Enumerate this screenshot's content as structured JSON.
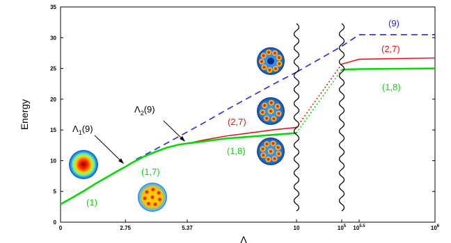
{
  "chart_data": {
    "type": "line",
    "xlabel": "Λ",
    "ylabel": "Energy",
    "ylim": [
      0,
      35
    ],
    "x_ticks": [
      {
        "label": "0",
        "value": 0
      },
      {
        "label": "2.75",
        "value": 2.75
      },
      {
        "label": "5.37",
        "value": 5.37
      },
      {
        "label": "10",
        "value": 10
      },
      {
        "label": "10",
        "sup": "5",
        "value": 100000
      },
      {
        "label": "10",
        "sup": "5.5",
        "value": 316228
      },
      {
        "label": "10",
        "sup": "6",
        "value": 1000000
      }
    ],
    "y_ticks": [
      0,
      5,
      10,
      15,
      20,
      25,
      30,
      35
    ],
    "series": [
      {
        "name": "(1)",
        "color": "#00dd00",
        "style": "solid",
        "points": [
          [
            0,
            2.9
          ],
          [
            0.5,
            4.0
          ],
          [
            1,
            5.1
          ],
          [
            1.5,
            6.3
          ],
          [
            2,
            7.4
          ],
          [
            2.5,
            8.5
          ],
          [
            2.75,
            9.0
          ],
          [
            3,
            9.6
          ],
          [
            3.5,
            10.6
          ],
          [
            4,
            11.4
          ],
          [
            4.5,
            12.1
          ],
          [
            5,
            12.6
          ],
          [
            5.37,
            12.8
          ]
        ]
      },
      {
        "name": "(1,7)",
        "color": "#00dd00",
        "style": "solid",
        "points": []
      },
      {
        "name": "(9)",
        "color": "#2222ff",
        "style": "dashed",
        "points": [
          [
            3.2,
            10.2
          ],
          [
            4,
            11.8
          ],
          [
            5,
            13.9
          ],
          [
            6,
            16.0
          ],
          [
            7,
            18.2
          ],
          [
            8,
            20.3
          ],
          [
            9,
            22.4
          ],
          [
            10,
            24.4
          ],
          [
            100000,
            28.6
          ],
          [
            316228,
            30.5
          ],
          [
            1000000,
            30.5
          ]
        ]
      },
      {
        "name": "(2,7)",
        "color": "#ee1111",
        "style": "solid",
        "points": [
          [
            5.37,
            12.8
          ],
          [
            6,
            13.3
          ],
          [
            7,
            14.0
          ],
          [
            8,
            14.5
          ],
          [
            9,
            15.0
          ],
          [
            10,
            15.4
          ],
          [
            100000,
            25.7
          ],
          [
            316228,
            26.5
          ],
          [
            1000000,
            26.7
          ]
        ]
      },
      {
        "name": "(1,8)",
        "color": "#00dd00",
        "style": "solid",
        "points": [
          [
            5.37,
            12.8
          ],
          [
            6,
            13.1
          ],
          [
            7,
            13.6
          ],
          [
            8,
            13.9
          ],
          [
            9,
            14.2
          ],
          [
            10,
            14.5
          ],
          [
            100000,
            24.8
          ],
          [
            316228,
            24.9
          ],
          [
            1000000,
            25.0
          ]
        ]
      }
    ],
    "annotations": [
      {
        "text": "Λ",
        "sub": "1",
        "suffix": "(9)",
        "points_to_x": 2.75
      },
      {
        "text": "Λ",
        "sub": "2",
        "suffix": "(9)",
        "points_to_x": 5.37
      }
    ],
    "label_colors": {
      "(1)": "#00dd00",
      "(1,7)": "#00dd00",
      "(2,7) low": "#ee1111",
      "(1,8) low": "#00dd00",
      "(9) high": "#2222ff",
      "(2,7) high": "#ee1111",
      "(1,8) high": "#00dd00"
    },
    "grid": false
  }
}
